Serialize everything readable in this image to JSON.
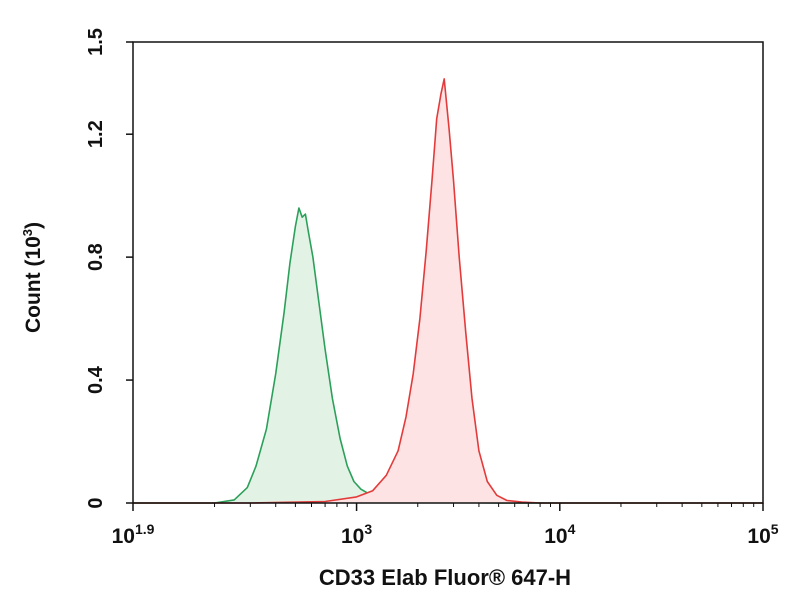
{
  "chart_data": {
    "type": "area",
    "title": "",
    "xlabel": "CD33 Elab Fluor® 647-H",
    "ylabel_base": "Count (10",
    "ylabel_exp": "3",
    "ylabel_tail": ")",
    "x_scale": "log",
    "xlim": [
      79.4,
      100000
    ],
    "ylim": [
      0,
      1.5
    ],
    "y_ticks": [
      "0",
      "0.4",
      "0.8",
      "1.2",
      "1.5"
    ],
    "y_tick_values": [
      0,
      0.4,
      0.8,
      1.2,
      1.5
    ],
    "x_ticks": [
      {
        "base": "10",
        "exp": "1.9",
        "value": 79.4
      },
      {
        "base": "10",
        "exp": "3",
        "value": 1000
      },
      {
        "base": "10",
        "exp": "4",
        "value": 10000
      },
      {
        "base": "10",
        "exp": "5",
        "value": 100000
      }
    ],
    "grid": false,
    "legend": "none",
    "series": [
      {
        "color": "#2ca05a",
        "fill": "#e2f3e6",
        "x": [
          79.4,
          200,
          250,
          290,
          320,
          360,
          400,
          440,
          470,
          500,
          520,
          540,
          560,
          580,
          610,
          650,
          700,
          760,
          830,
          900,
          970,
          1050,
          1150,
          1300,
          1500,
          1800,
          2200,
          3000,
          5000,
          10000,
          100000
        ],
        "y": [
          0.0,
          0.0,
          0.01,
          0.05,
          0.12,
          0.24,
          0.42,
          0.62,
          0.78,
          0.9,
          0.96,
          0.93,
          0.94,
          0.88,
          0.8,
          0.66,
          0.5,
          0.34,
          0.21,
          0.12,
          0.07,
          0.045,
          0.03,
          0.02,
          0.015,
          0.01,
          0.005,
          0.002,
          0.0,
          0.0,
          0.0
        ]
      },
      {
        "color": "#e33b3b",
        "fill": "#fde3e3",
        "x": [
          79.4,
          300,
          700,
          1000,
          1200,
          1400,
          1600,
          1750,
          1900,
          2050,
          2200,
          2350,
          2480,
          2600,
          2700,
          2850,
          3000,
          3200,
          3450,
          3700,
          4000,
          4400,
          4900,
          5500,
          6500,
          8000,
          100000
        ],
        "y": [
          0.0,
          0.0,
          0.005,
          0.02,
          0.04,
          0.09,
          0.17,
          0.28,
          0.42,
          0.6,
          0.82,
          1.05,
          1.25,
          1.33,
          1.38,
          1.22,
          1.05,
          0.8,
          0.55,
          0.34,
          0.17,
          0.07,
          0.025,
          0.008,
          0.003,
          0.0,
          0.0
        ]
      }
    ]
  }
}
